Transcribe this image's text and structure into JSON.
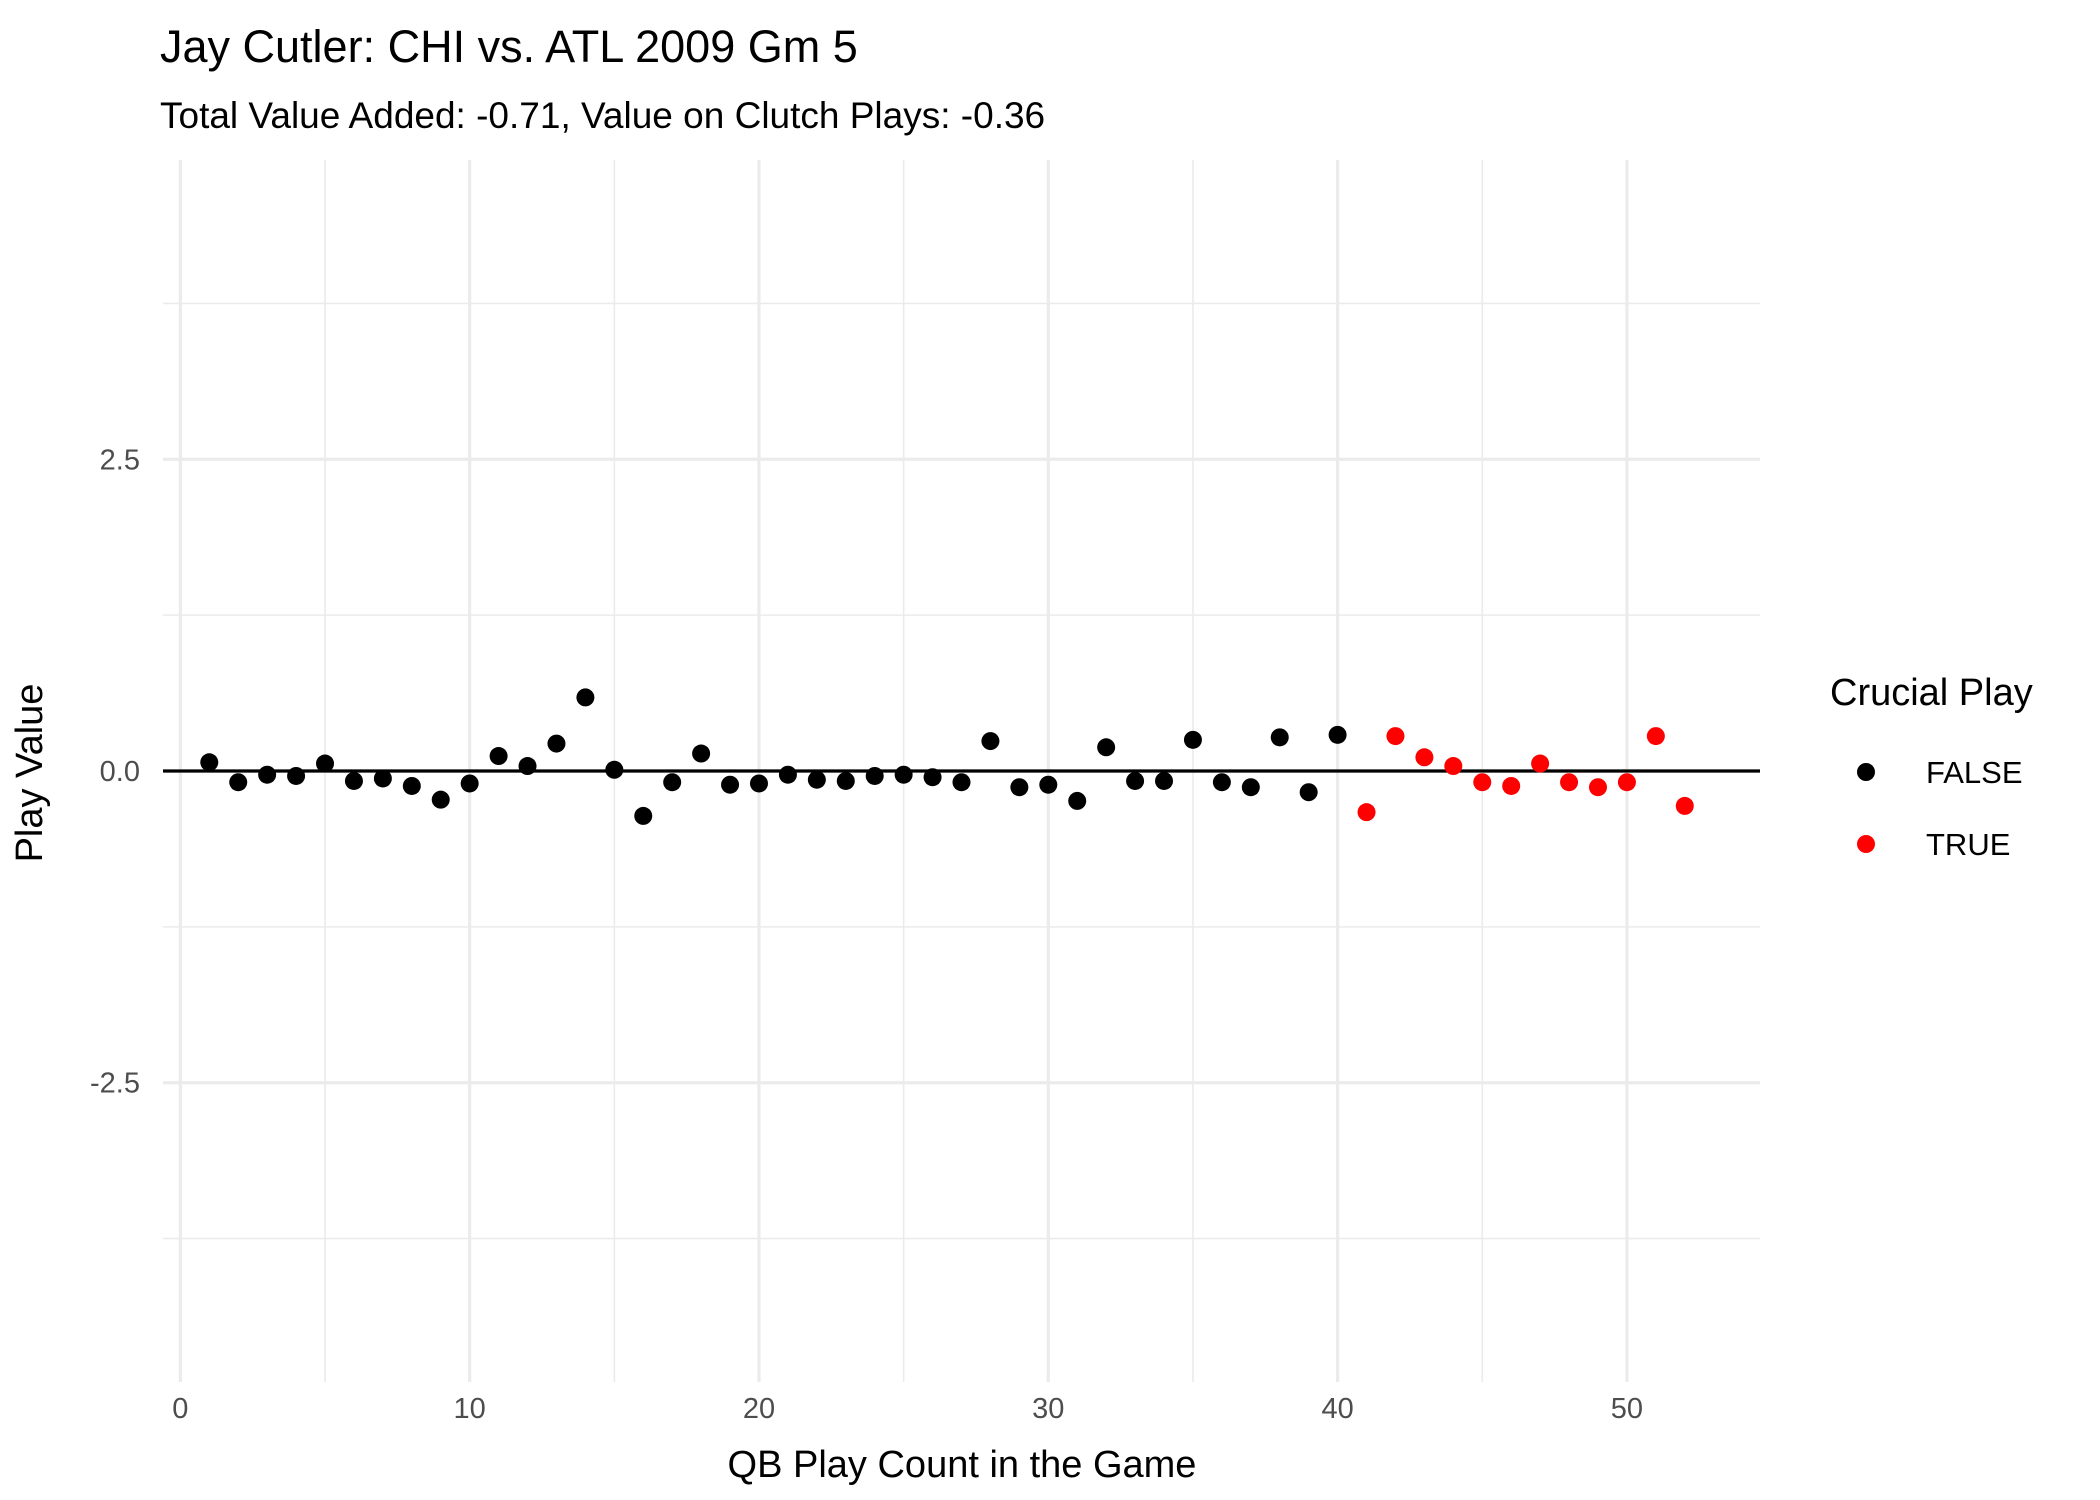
{
  "chart_data": {
    "type": "scatter",
    "title": "Jay Cutler: CHI vs. ATL 2009 Gm 5",
    "subtitle": "Total Value Added: -0.71, Value on Clutch Plays: -0.36",
    "xlabel": "QB Play Count in the Game",
    "ylabel": "Play Value",
    "xlim": [
      -0.6,
      54.6
    ],
    "ylim": [
      -4.9,
      4.9
    ],
    "x_ticks": [
      "0",
      "10",
      "20",
      "30",
      "40",
      "50"
    ],
    "y_ticks": [
      "-2.5",
      "0.0",
      "2.5"
    ],
    "grid": true,
    "reference_line_y": 0,
    "legend": {
      "title": "Crucial Play",
      "placement": "right",
      "entries": [
        {
          "label": "FALSE",
          "color": "#000000"
        },
        {
          "label": "TRUE",
          "color": "#ff0000"
        }
      ]
    },
    "series": [
      {
        "name": "FALSE",
        "color": "#000000",
        "x": [
          1,
          2,
          3,
          4,
          5,
          6,
          7,
          8,
          9,
          10,
          11,
          12,
          13,
          14,
          15,
          16,
          17,
          18,
          19,
          20,
          21,
          22,
          23,
          24,
          25,
          26,
          27,
          28,
          29,
          30,
          31,
          32,
          33,
          34,
          35,
          36,
          37,
          38,
          39,
          40
        ],
        "y": [
          0.07,
          -0.09,
          -0.03,
          -0.04,
          0.06,
          -0.08,
          -0.06,
          -0.12,
          -0.23,
          -0.1,
          0.12,
          0.04,
          0.22,
          0.59,
          0.01,
          -0.36,
          -0.09,
          0.14,
          -0.11,
          -0.1,
          -0.03,
          -0.07,
          -0.08,
          -0.04,
          -0.03,
          -0.05,
          -0.09,
          0.24,
          -0.13,
          -0.11,
          -0.24,
          0.19,
          -0.08,
          -0.08,
          0.25,
          -0.09,
          -0.13,
          0.27,
          -0.17,
          0.29
        ]
      },
      {
        "name": "TRUE",
        "color": "#ff0000",
        "x": [
          41,
          42,
          43,
          44,
          45,
          46,
          47,
          48,
          49,
          50,
          51,
          52
        ],
        "y": [
          -0.33,
          0.28,
          0.11,
          0.04,
          -0.09,
          -0.12,
          0.06,
          -0.09,
          -0.13,
          -0.09,
          0.28,
          -0.28
        ]
      }
    ]
  }
}
